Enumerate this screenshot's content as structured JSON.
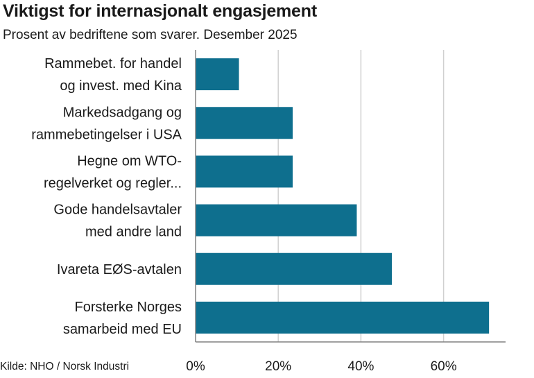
{
  "title": "Viktigst for internasjonalt engasjement",
  "subtitle": "Prosent av bedriftene som svarer. Desember 2025",
  "source": "Kilde: NHO / Norsk Industri",
  "colors": {
    "bar": "#0e6f8e",
    "grid": "#d0d0d0",
    "axis": "#808080",
    "text": "#1a1a1a"
  },
  "chart_data": {
    "type": "bar",
    "orientation": "horizontal",
    "categories": [
      [
        "Rammebet. for handel",
        "og invest. med Kina"
      ],
      [
        "Markedsadgang og",
        "rammebetingelser i USA"
      ],
      [
        "Hegne om WTO-",
        "regelverket og regler..."
      ],
      [
        "Gode handelsavtaler",
        "med andre land"
      ],
      [
        "Ivareta EØS-avtalen"
      ],
      [
        "Forsterke Norges",
        "samarbeid med EU"
      ]
    ],
    "values": [
      10.5,
      23.5,
      23.5,
      39,
      47.5,
      71
    ],
    "xlim": [
      0,
      75
    ],
    "xticks": [
      0,
      20,
      40,
      60
    ],
    "xtick_labels": [
      "0%",
      "20%",
      "40%",
      "60%"
    ],
    "grid": true,
    "legend": "none"
  }
}
